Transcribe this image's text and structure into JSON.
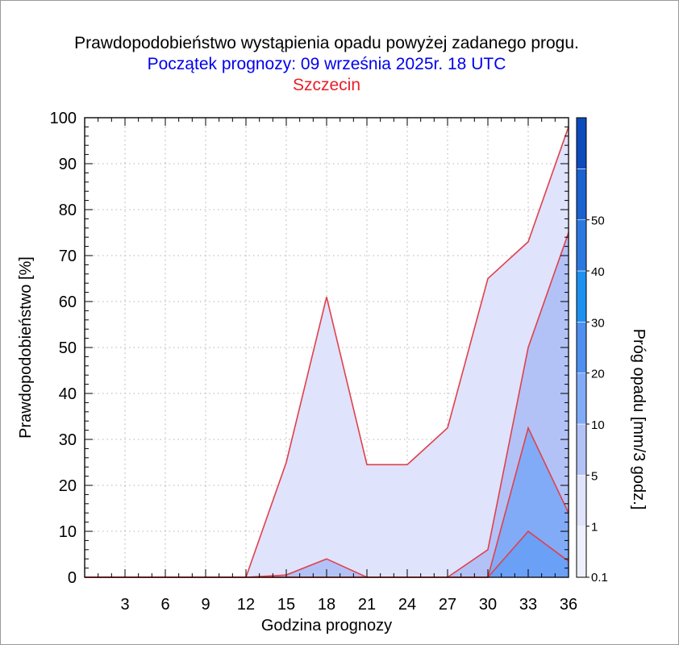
{
  "title": "Prawdopodobieństwo wystąpienia opadu powyżej zadanego progu.",
  "subtitle": "Początek prognozy: 09 września 2025r. 18 UTC",
  "location": "Szczecin",
  "colors": {
    "title": "#000000",
    "subtitle": "#0000ee",
    "location": "#e8202a",
    "line": "#e0404a"
  },
  "chart_data": {
    "type": "area",
    "title": "Prawdopodobieństwo wystąpienia opadu powyżej zadanego progu.",
    "xlabel": "Godzina prognozy",
    "ylabel": "Prawdopodobieństwo [%]",
    "xlim": [
      0,
      36
    ],
    "ylim": [
      0,
      100
    ],
    "grid": true,
    "x": [
      0,
      3,
      6,
      9,
      12,
      15,
      18,
      21,
      24,
      27,
      30,
      33,
      36
    ],
    "x_ticks": [
      "3",
      "6",
      "9",
      "12",
      "15",
      "18",
      "21",
      "24",
      "27",
      "30",
      "33",
      "36"
    ],
    "y_ticks": [
      "0",
      "10",
      "20",
      "30",
      "40",
      "50",
      "60",
      "70",
      "80",
      "90",
      "100"
    ],
    "series": [
      {
        "threshold": 0.1,
        "color": "#dfe3fb",
        "values": [
          0,
          0,
          0,
          0,
          0,
          25,
          61,
          24.5,
          24.5,
          32.5,
          65,
          73,
          98
        ]
      },
      {
        "threshold": 1,
        "color": "#b3c2f6",
        "values": [
          0,
          0,
          0,
          0,
          0,
          0.5,
          4,
          0,
          0,
          0,
          6,
          50,
          75
        ]
      },
      {
        "threshold": 5,
        "color": "#82abf7",
        "values": [
          0,
          0,
          0,
          0,
          0,
          0,
          0,
          0,
          0,
          0,
          0,
          32.5,
          14
        ]
      },
      {
        "threshold": 10,
        "color": "#6aa0f6",
        "values": [
          0,
          0,
          0,
          0,
          0,
          0,
          0,
          0,
          0,
          0,
          0,
          10,
          3.5
        ]
      }
    ],
    "colorbar": {
      "label": "Próg opadu [mm/3 godz.]",
      "ticks": [
        "0.1",
        "1",
        "5",
        "10",
        "20",
        "30",
        "40",
        "50"
      ],
      "colors": [
        "#eef1fd",
        "#dfe3fb",
        "#b3c2f6",
        "#82abf7",
        "#4f8ff0",
        "#1e90f0",
        "#2b78e0",
        "#1a62d0",
        "#0c4bbb"
      ]
    }
  }
}
